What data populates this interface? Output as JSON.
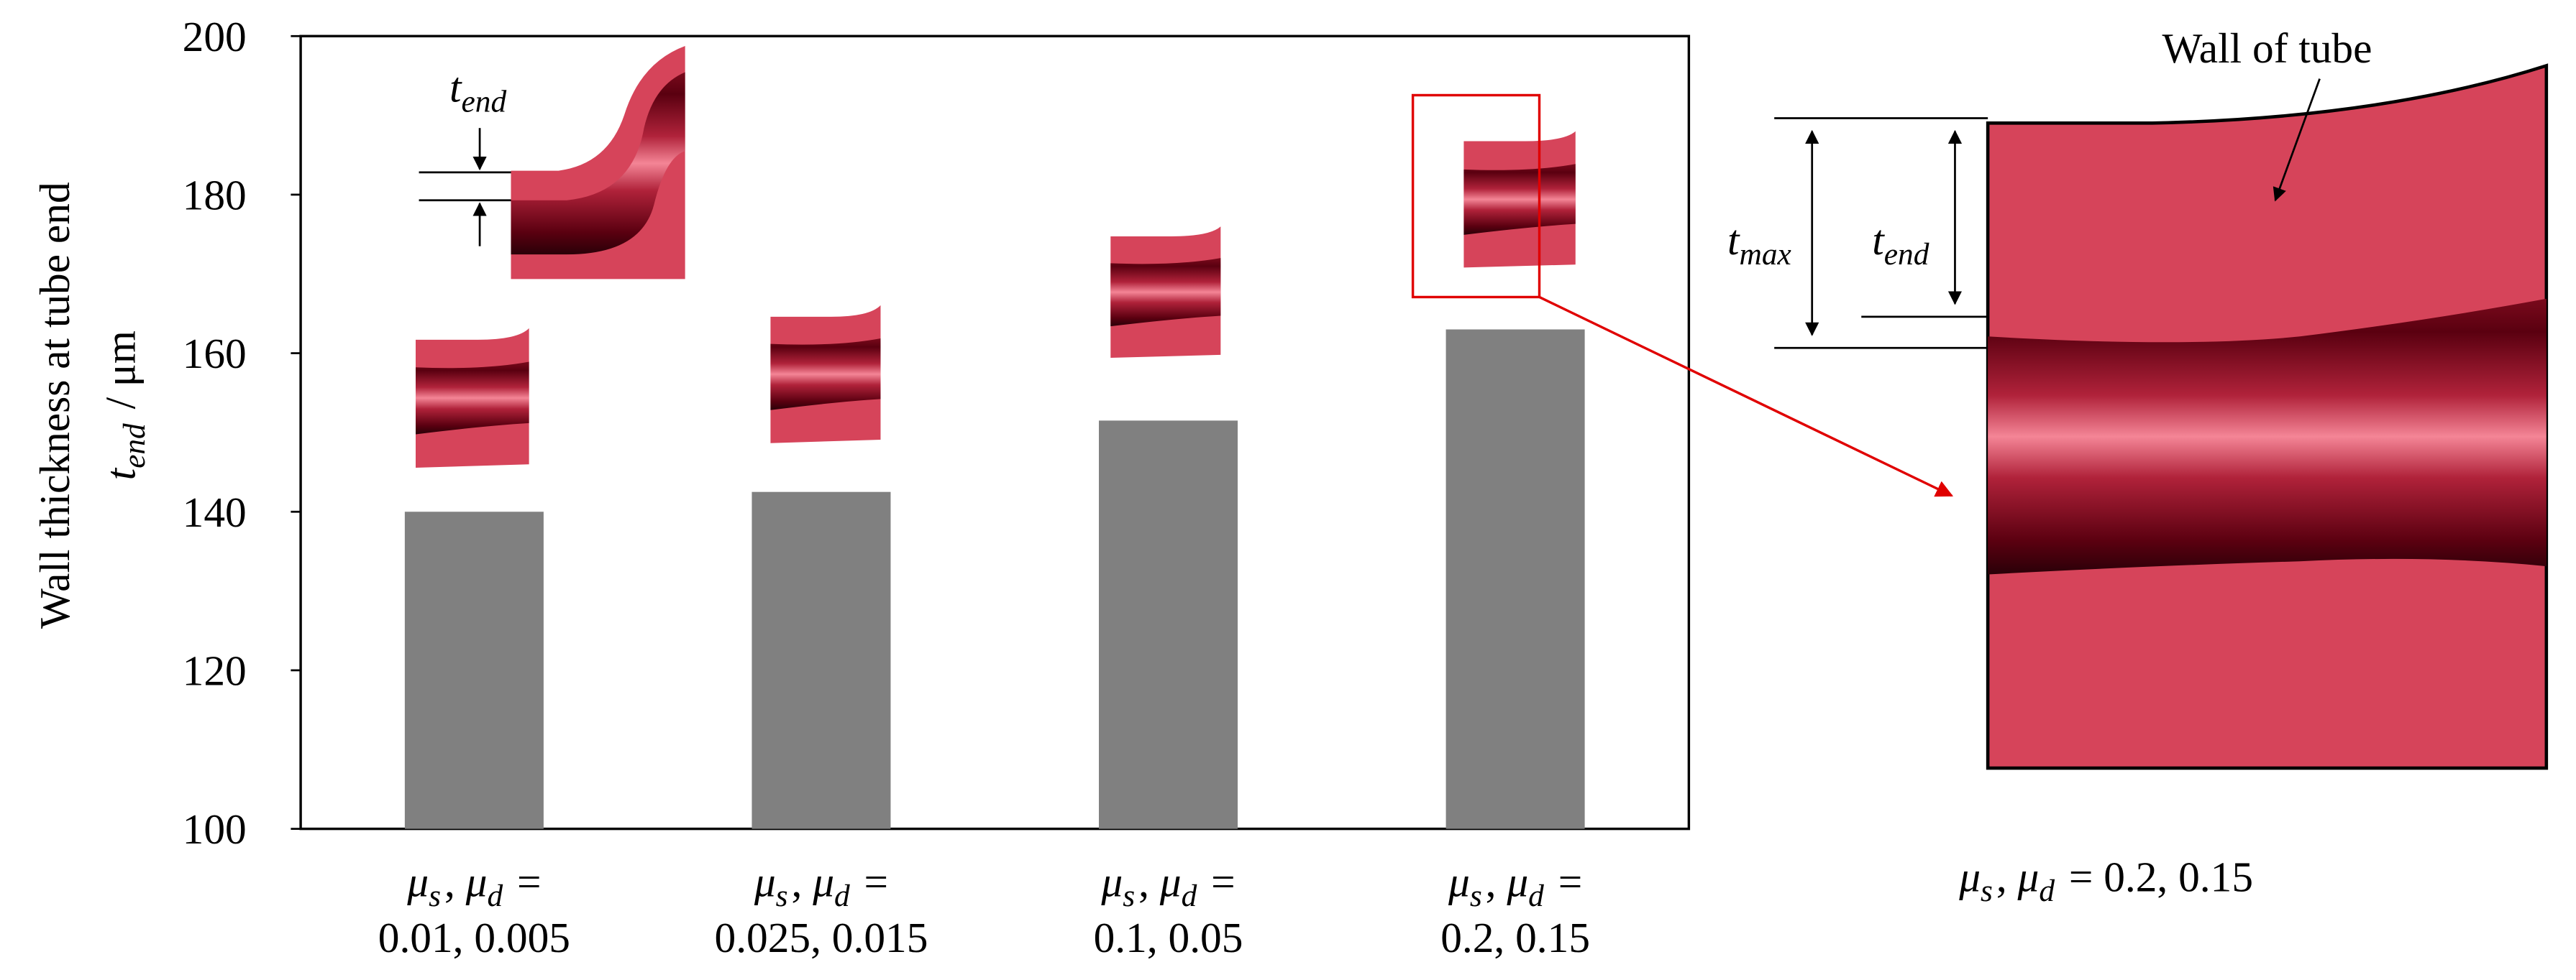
{
  "chart_data": {
    "type": "bar",
    "y_label": "Wall thickness at tube end",
    "y_label_2": "tend / μm",
    "categories": [
      "μs, μd = 0.01, 0.005",
      "μs, μd = 0.025, 0.015",
      "μs, μd = 0.1, 0.05",
      "μs, μd = 0.2, 0.15"
    ],
    "values": [
      140,
      142.5,
      151.5,
      163
    ],
    "color": "#808080",
    "ylim": [
      100,
      200
    ],
    "yticks": [
      100,
      120,
      140,
      160,
      180,
      200
    ],
    "grid": false,
    "annotations": {
      "inset_thickness": "tend",
      "wall": "Wall of tube",
      "t_max": "tmax",
      "t_end": "tend",
      "zoom_caption": "μs, μd = 0.2, 0.15"
    }
  }
}
